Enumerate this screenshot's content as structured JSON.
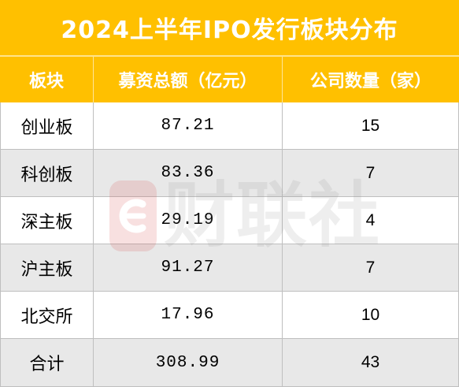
{
  "chart_data": {
    "type": "table",
    "title": "2024上半年IPO发行板块分布",
    "columns": [
      "板块",
      "募资总额（亿元）",
      "公司数量（家）"
    ],
    "rows": [
      [
        "创业板",
        87.21,
        15
      ],
      [
        "科创板",
        83.36,
        7
      ],
      [
        "深主板",
        29.19,
        4
      ],
      [
        "沪主板",
        91.27,
        7
      ],
      [
        "北交所",
        17.96,
        10
      ],
      [
        "合计",
        308.99,
        43
      ]
    ]
  },
  "colors": {
    "header_bg": "#FFC000",
    "header_text": "#FFFFFF",
    "row_bg": "#FFFFFF",
    "alt_row_bg": "#E8E8E8",
    "body_text": "#000000",
    "grid_line": "#BFBFBF"
  },
  "watermark": {
    "icon": "cls-logo-icon",
    "text": "财联社"
  }
}
